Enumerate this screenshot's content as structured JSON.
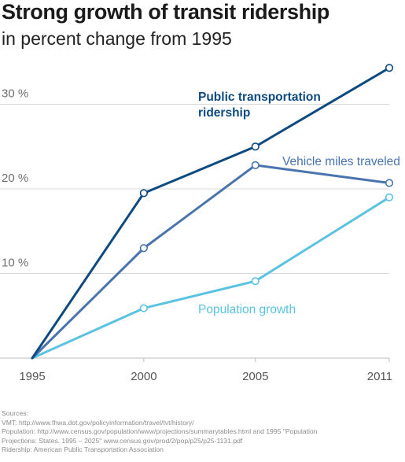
{
  "title": "Strong growth of transit ridership",
  "subtitle": "in percent change from 1995",
  "chart_data": {
    "type": "line",
    "title": "Strong growth of transit ridership",
    "subtitle": "in percent change from 1995",
    "x": [
      1995,
      2000,
      2005,
      2011
    ],
    "x_tick_labels": [
      "1995",
      "2000",
      "2005",
      "2011"
    ],
    "y_tick_labels": [
      "10 %",
      "20 %",
      "30 %"
    ],
    "y_ticks": [
      10,
      20,
      30
    ],
    "ylim": [
      0,
      34.5
    ],
    "grid": true,
    "series": [
      {
        "name": "Public transportation ridership",
        "label_lines": [
          "Public transportation",
          "ridership"
        ],
        "values": [
          0,
          19.5,
          25,
          34.3
        ],
        "color": "#0d4a80"
      },
      {
        "name": "Vehicle miles traveled",
        "label_lines": [
          "Vehicle miles traveled"
        ],
        "values": [
          0,
          13,
          22.8,
          20.7
        ],
        "color": "#4a74ad"
      },
      {
        "name": "Population growth",
        "label_lines": [
          "Population growth"
        ],
        "values": [
          0,
          5.9,
          9.1,
          19
        ],
        "color": "#5bc3e2"
      }
    ]
  },
  "sources": [
    "Sources:",
    "VMT: http://www.fhwa.dot.gov/policyinformation/travel/tvt/history/",
    "Population: http://www.census.gov/population/www/projections/summarytables.html and 1995 \"Population",
    "Projections: States. 1995 – 2025\" www.census.gov/prod/2/pop/p25/p25-1131.pdf",
    "Ridership: American Public Transportation Association"
  ]
}
